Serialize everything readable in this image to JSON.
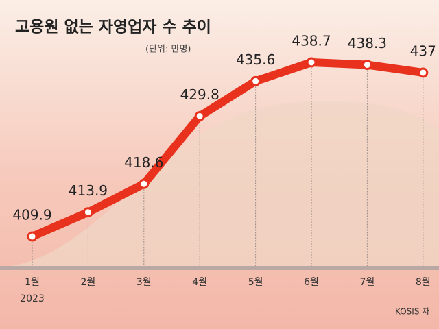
{
  "chart_data": {
    "type": "line",
    "title": "고용원 없는 자영업자 수 추이",
    "subtitle": "(단위: 만명)",
    "categories": [
      "1월",
      "2월",
      "3월",
      "4월",
      "5월",
      "6월",
      "7월",
      "8월"
    ],
    "year_label": "2023",
    "values": [
      409.9,
      413.9,
      418.6,
      429.8,
      435.6,
      438.7,
      438.3,
      437
    ],
    "color": "#e8321e",
    "source": "KOSIS 자"
  }
}
